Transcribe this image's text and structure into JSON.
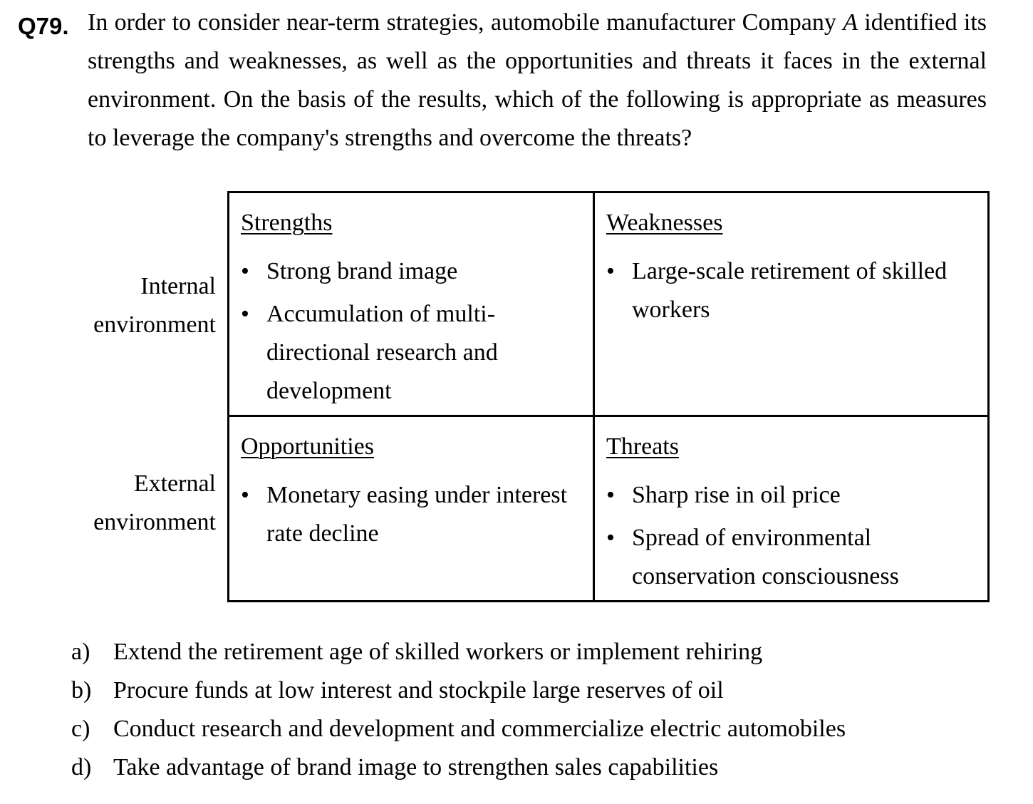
{
  "question": {
    "number": "Q79.",
    "text_before_company_var": "In order to consider near-term strategies, automobile manufacturer Company ",
    "company_var": "A",
    "text_after_company_var": " identified its strengths and weaknesses, as well as the opportunities and threats it faces in the external environment. On the basis of the results, which of the following is appropriate as measures to leverage the company's strengths and overcome the threats?"
  },
  "swot": {
    "row_labels": {
      "internal": [
        "Internal",
        "environment"
      ],
      "external": [
        "External",
        "environment"
      ]
    },
    "strengths": {
      "heading": "Strengths",
      "items": [
        "Strong brand image",
        "Accumulation of multi-directional research and development"
      ]
    },
    "weaknesses": {
      "heading": "Weaknesses",
      "items": [
        "Large-scale retirement of skilled workers"
      ]
    },
    "opportunities": {
      "heading": "Opportunities",
      "items": [
        "Monetary easing under interest rate decline"
      ]
    },
    "threats": {
      "heading": "Threats",
      "items": [
        "Sharp rise in oil price",
        "Spread of environmental conservation consciousness"
      ]
    }
  },
  "choices": [
    {
      "letter": "a)",
      "text": "Extend the retirement age of skilled workers or implement rehiring"
    },
    {
      "letter": "b)",
      "text": "Procure funds at low interest and stockpile large reserves of oil"
    },
    {
      "letter": "c)",
      "text": "Conduct research and development and commercialize electric automobiles"
    },
    {
      "letter": "d)",
      "text": "Take advantage of brand image to strengthen sales capabilities"
    }
  ]
}
